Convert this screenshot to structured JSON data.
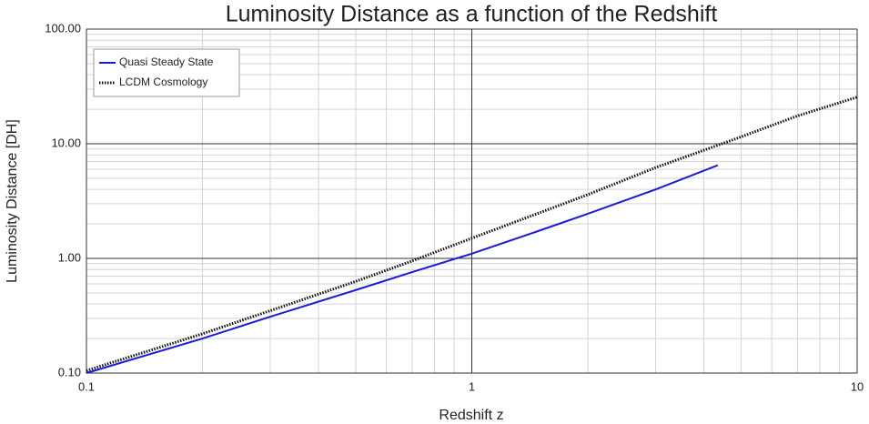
{
  "chart_data": {
    "type": "line",
    "title": "Luminosity Distance as a function of the Redshift",
    "x_label": "Redshift  z",
    "y_label": "Luminosity Distance [DH]",
    "log_x": true,
    "log_y": true,
    "grid": true,
    "legend": "upper left",
    "xlim": [
      0.1,
      10
    ],
    "xticks": [
      0.1,
      1,
      10
    ],
    "ylim": [
      0.1,
      100
    ],
    "yticks": [
      {
        "value": 0.1,
        "label": "0.10"
      },
      {
        "value": 1,
        "label": "1.00"
      },
      {
        "value": 10,
        "label": "10.00"
      },
      {
        "value": 100,
        "label": "100.00"
      }
    ],
    "series": [
      {
        "name": "Quasi Steady State",
        "color": "#1a1adc",
        "style": "solid",
        "x": [
          0.1,
          0.2,
          0.3,
          0.5,
          0.7,
          1,
          1.5,
          2,
          3,
          4.35
        ],
        "values": [
          0.1,
          0.2,
          0.31,
          0.53,
          0.76,
          1.1,
          1.75,
          2.45,
          4.0,
          6.5
        ]
      },
      {
        "name": "LCDM Cosmology",
        "color": "#111111",
        "style": "dotted",
        "x": [
          0.1,
          0.2,
          0.3,
          0.5,
          0.7,
          1,
          2,
          3,
          5,
          7,
          10
        ],
        "values": [
          0.105,
          0.22,
          0.35,
          0.63,
          0.95,
          1.5,
          3.6,
          6.2,
          11.5,
          17.5,
          25.5
        ]
      }
    ]
  }
}
